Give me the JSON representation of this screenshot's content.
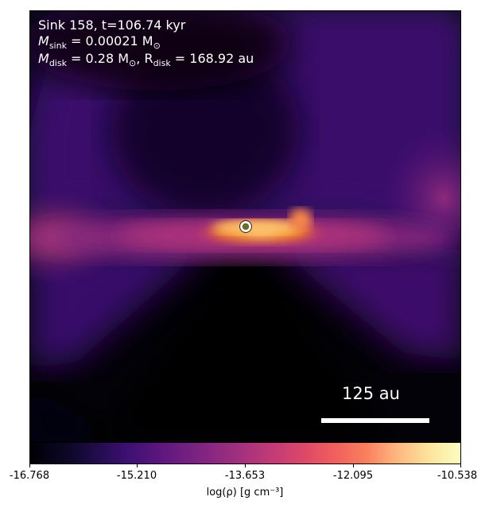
{
  "annotation": {
    "sink_line": "Sink 158, t=106.74 kyr",
    "msink_symbol": "M",
    "msink_sub": "sink",
    "msink_value": " = 0.00021 M",
    "msink_unit_sub": "⊙",
    "mdisk_symbol": "M",
    "mdisk_sub": "disk",
    "mdisk_value": " = 0.28 M",
    "mdisk_unit_sub": "⊙",
    "rdisk_prefix": ", R",
    "rdisk_sub": "disk",
    "rdisk_value": " = 168.92 au"
  },
  "scalebar": {
    "label": "125 au"
  },
  "colorbar": {
    "colormap": "inferno",
    "ticks": [
      "-16.768",
      "-15.210",
      "-13.653",
      "-12.095",
      "-10.538"
    ],
    "label": "log(ρ) [g cm⁻³]"
  },
  "sink_marker": {
    "fill": "#6b6b2e",
    "stroke": "#ffffff"
  }
}
